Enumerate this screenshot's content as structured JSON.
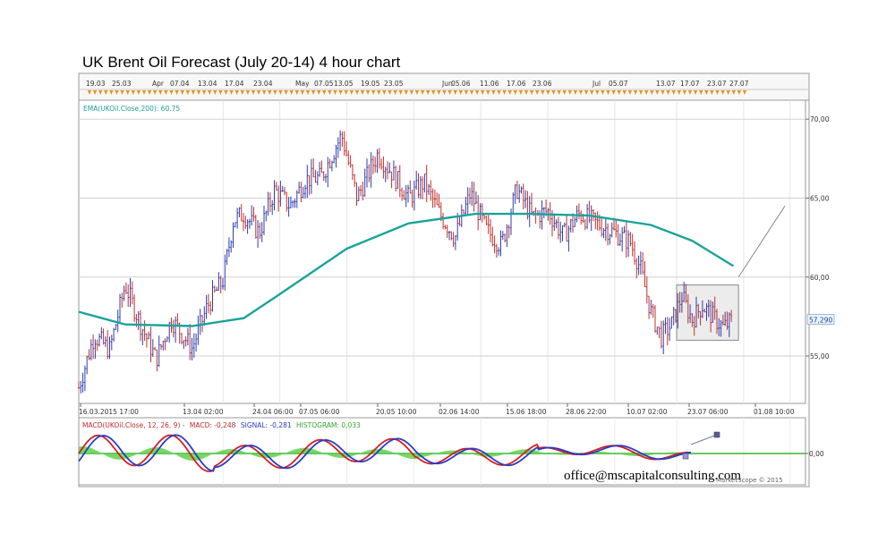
{
  "title": "UK Brent Oil Forecast (July 20-14) 4 hour chart",
  "watermark": "office@mscapitalconsulting.com",
  "copyright": "MarketScope © 2015",
  "colors": {
    "up": "#2e3fb0",
    "down": "#c0302c",
    "ema": "#1aa39b",
    "macd": "#d32020",
    "signal": "#2a3cc8",
    "histogram": "#5fd14a",
    "zero_line": "#34b534",
    "box_fill": "#ececec",
    "box_stroke": "#8a8a8a",
    "forecast": "#888888",
    "tick_marker": "#e8951d",
    "label_teal": "#1a9c96"
  },
  "top_axis_labels": [
    "19.03",
    "25.03",
    "Apr",
    "07.04",
    "13.04",
    "17.04",
    "23.04",
    "May",
    "07.05",
    "13.05",
    "19.05",
    "23.05",
    "Jun",
    "05.06",
    "11.06",
    "17.06",
    "23.06",
    "Jul",
    "05.07",
    "13.07",
    "17.07",
    "23.07",
    "27.07"
  ],
  "bottom_axis_labels": [
    "16.03.2015 17:00",
    "13.04 02:00",
    "24.04 06:00",
    "07.05 06:00",
    "20.05 10:00",
    "02.06 14:00",
    "15.06 18:00",
    "28.06 22:00",
    "10.07 02:00",
    "23.07 06:00",
    "01.08 10:00"
  ],
  "price_labels": [
    "70,00",
    "65,00",
    "60,00",
    "55,00"
  ],
  "current_price": "57,290",
  "ema_label": "EMA(UKOil.Close,200): 60.75",
  "macd_legend": {
    "macd_title": "MACD(UKOil.Close, 12, 26, 9) -",
    "macd_value": "MACD: -0,248",
    "signal_value": "SIGNAL: -0,281",
    "histogram_value": "HISTOGRAM: 0,033"
  },
  "macd_axis_label": "0,00",
  "chart_data": [
    {
      "type": "candlestick",
      "title": "UK Brent Oil Forecast (July 20-14) 4 hour chart",
      "price_range": [
        52,
        71.2
      ],
      "x_range_labels": [
        "16.03.2015",
        "01.08"
      ],
      "price_path": [
        {
          "x": "16.03",
          "price": 53.0
        },
        {
          "x": "19.03",
          "price": 56.3
        },
        {
          "x": "22.03",
          "price": 55.4
        },
        {
          "x": "25.03",
          "price": 59.5
        },
        {
          "x": "28.03",
          "price": 57.0
        },
        {
          "x": "31.03",
          "price": 54.8
        },
        {
          "x": "03.04",
          "price": 57.3
        },
        {
          "x": "07.04",
          "price": 55.5
        },
        {
          "x": "10.04",
          "price": 58.2
        },
        {
          "x": "13.04",
          "price": 59.8
        },
        {
          "x": "15.04",
          "price": 63.6
        },
        {
          "x": "17.04",
          "price": 64.0
        },
        {
          "x": "20.04",
          "price": 62.8
        },
        {
          "x": "23.04",
          "price": 65.5
        },
        {
          "x": "26.04",
          "price": 64.5
        },
        {
          "x": "29.04",
          "price": 66.2
        },
        {
          "x": "02.05",
          "price": 66.3
        },
        {
          "x": "06.05",
          "price": 69.0
        },
        {
          "x": "09.05",
          "price": 65.0
        },
        {
          "x": "13.05",
          "price": 67.8
        },
        {
          "x": "16.05",
          "price": 66.5
        },
        {
          "x": "19.05",
          "price": 65.0
        },
        {
          "x": "22.05",
          "price": 66.0
        },
        {
          "x": "25.05",
          "price": 64.0
        },
        {
          "x": "28.05",
          "price": 62.5
        },
        {
          "x": "31.05",
          "price": 65.3
        },
        {
          "x": "03.06",
          "price": 63.0
        },
        {
          "x": "06.06",
          "price": 62.0
        },
        {
          "x": "09.06",
          "price": 65.6
        },
        {
          "x": "12.06",
          "price": 63.8
        },
        {
          "x": "15.06",
          "price": 64.2
        },
        {
          "x": "18.06",
          "price": 62.6
        },
        {
          "x": "21.06",
          "price": 64.0
        },
        {
          "x": "25.06",
          "price": 63.3
        },
        {
          "x": "28.06",
          "price": 62.8
        },
        {
          "x": "01.07",
          "price": 62.2
        },
        {
          "x": "03.07",
          "price": 60.5
        },
        {
          "x": "05.07",
          "price": 57.8
        },
        {
          "x": "07.07",
          "price": 56.2
        },
        {
          "x": "09.07",
          "price": 57.0
        },
        {
          "x": "11.07",
          "price": 58.8
        },
        {
          "x": "13.07",
          "price": 57.3
        },
        {
          "x": "15.07",
          "price": 58.2
        },
        {
          "x": "17.07",
          "price": 57.5
        },
        {
          "x": "19.07",
          "price": 56.8
        },
        {
          "x": "21.07",
          "price": 57.3
        }
      ],
      "ema": {
        "name": "EMA(UKOil.Close,200)",
        "last_value": 60.75,
        "points": [
          {
            "x": "16.03",
            "y": 57.8
          },
          {
            "x": "25.03",
            "y": 57.0
          },
          {
            "x": "07.04",
            "y": 56.9
          },
          {
            "x": "17.04",
            "y": 57.4
          },
          {
            "x": "23.04",
            "y": 58.7
          },
          {
            "x": "07.05",
            "y": 61.8
          },
          {
            "x": "19.05",
            "y": 63.4
          },
          {
            "x": "01.06",
            "y": 64.0
          },
          {
            "x": "11.06",
            "y": 64.0
          },
          {
            "x": "23.06",
            "y": 63.9
          },
          {
            "x": "05.07",
            "y": 63.3
          },
          {
            "x": "13.07",
            "y": 62.3
          },
          {
            "x": "21.07",
            "y": 60.7
          }
        ]
      },
      "consolidation_box": {
        "from": "10.07",
        "to": "22.07",
        "low": 56.0,
        "high": 59.5
      },
      "forecast_line": {
        "from": {
          "x": "22.07",
          "y": 60.0
        },
        "to": {
          "x": "31.07",
          "y": 64.5
        }
      },
      "gridlines": [
        70,
        65,
        60,
        55
      ]
    },
    {
      "type": "line",
      "title": "MACD(UKOil.Close, 12, 26, 9)",
      "series": [
        {
          "name": "MACD",
          "last_value": -0.248
        },
        {
          "name": "SIGNAL",
          "last_value": -0.281
        },
        {
          "name": "HISTOGRAM",
          "last_value": 0.033
        }
      ],
      "zero_line": 0
    }
  ]
}
